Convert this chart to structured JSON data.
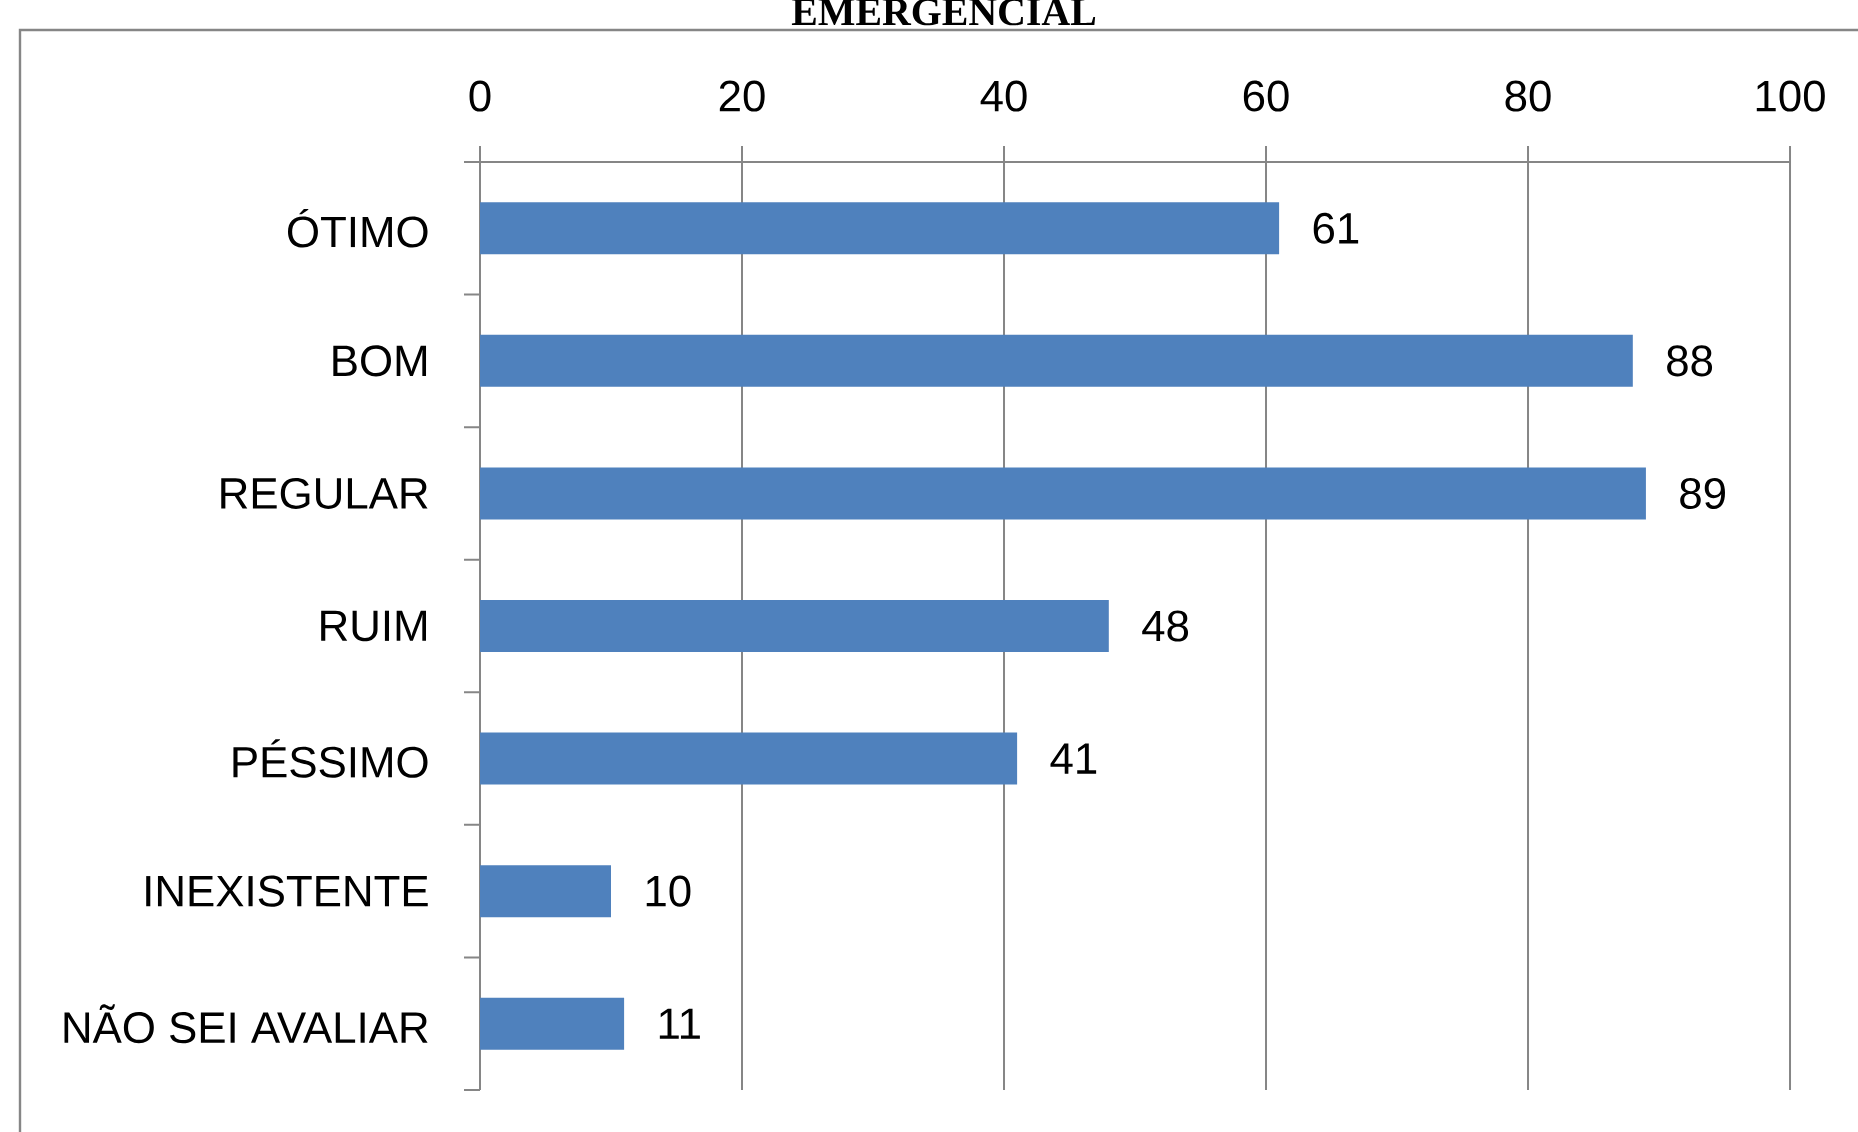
{
  "chart_data": {
    "type": "bar",
    "orientation": "horizontal",
    "title": "EMERGENCIAL",
    "categories": [
      "ÓTIMO",
      "BOM",
      "REGULAR",
      "RUIM",
      "PÉSSIMO",
      "INEXISTENTE",
      "NÃO SEI AVALIAR"
    ],
    "values": [
      61,
      88,
      89,
      48,
      41,
      10,
      11
    ],
    "color": "#4f81bd",
    "xlim": [
      0,
      100
    ],
    "xticks": [
      0,
      20,
      40,
      60,
      80,
      100
    ],
    "grid": "x",
    "data_labels": true
  }
}
